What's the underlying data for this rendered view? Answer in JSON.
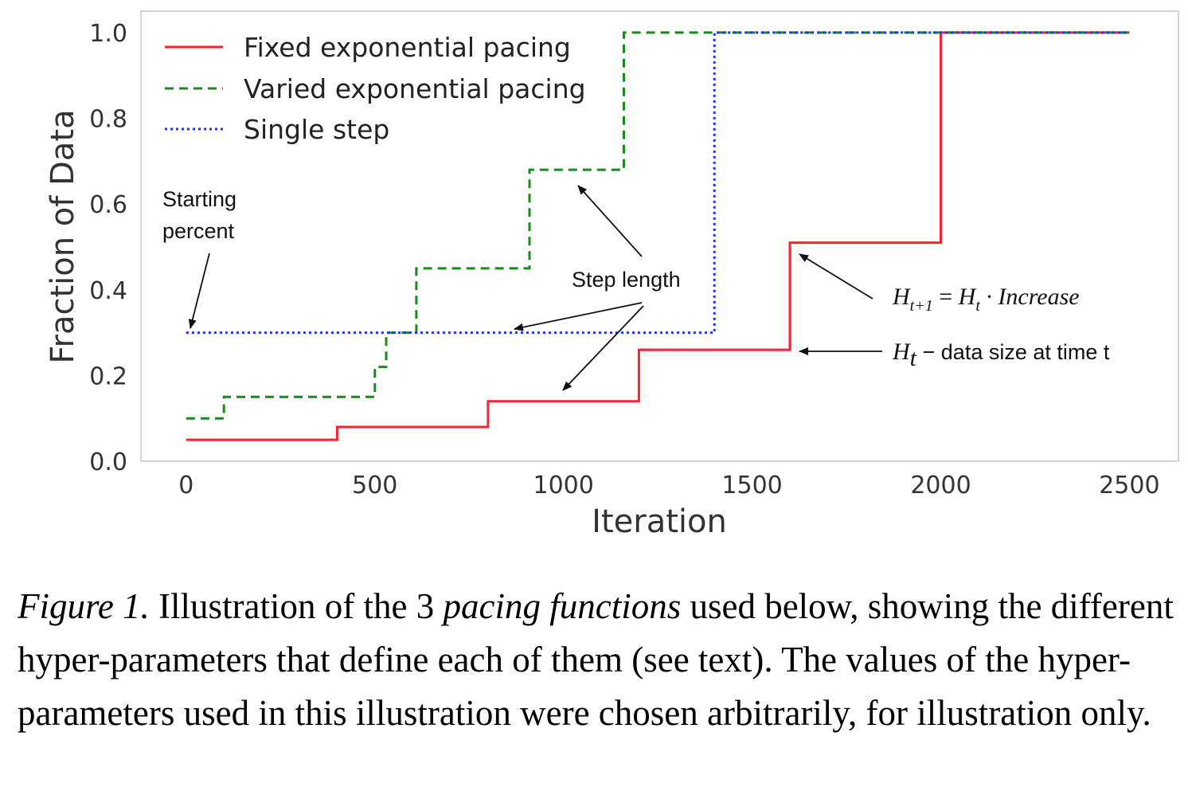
{
  "chart_data": {
    "type": "line",
    "xlabel": "Iteration",
    "ylabel": "Fraction of Data",
    "xlim": [
      -120,
      2630
    ],
    "ylim": [
      0.0,
      1.05
    ],
    "xticks": [
      0,
      500,
      1000,
      1500,
      2000,
      2500
    ],
    "xtick_labels": [
      "0",
      "500",
      "1000",
      "1500",
      "2000",
      "2500"
    ],
    "yticks": [
      0.0,
      0.2,
      0.4,
      0.6,
      0.8,
      1.0
    ],
    "ytick_labels": [
      "0.0",
      "0.2",
      "0.4",
      "0.6",
      "0.8",
      "1.0"
    ],
    "grid": false,
    "legend_position": "top-left",
    "series": [
      {
        "name": "Fixed exponential pacing",
        "color": "#ff1f2e",
        "style": "solid",
        "x": [
          0,
          400,
          400,
          800,
          800,
          1200,
          1200,
          1600,
          1600,
          2000,
          2000,
          2500
        ],
        "y": [
          0.05,
          0.05,
          0.08,
          0.08,
          0.14,
          0.14,
          0.26,
          0.26,
          0.51,
          0.51,
          1.0,
          1.0
        ]
      },
      {
        "name": "Varied exponential pacing",
        "color": "#1a8a1a",
        "style": "dashed",
        "x": [
          0,
          100,
          100,
          500,
          500,
          530,
          530,
          610,
          610,
          910,
          910,
          1160,
          1160,
          2500
        ],
        "y": [
          0.1,
          0.1,
          0.15,
          0.15,
          0.22,
          0.22,
          0.3,
          0.3,
          0.45,
          0.45,
          0.68,
          0.68,
          1.0,
          1.0
        ]
      },
      {
        "name": "Single step",
        "color": "#1f2fff",
        "style": "dotted",
        "x": [
          0,
          1400,
          1400,
          2500
        ],
        "y": [
          0.3,
          0.3,
          1.0,
          1.0
        ]
      }
    ],
    "annotations": {
      "starting_percent": [
        "Starting",
        "percent"
      ],
      "step_length": "Step length",
      "formula": {
        "h_next": "H",
        "h_next_sub": "t+1",
        "equals": " = ",
        "h": "H",
        "h_sub": "t",
        "rest": " · Increase"
      },
      "data_size": {
        "h": "H",
        "h_sub": "t",
        "rest": " − data size at time t"
      }
    }
  },
  "caption": {
    "label": "Figure 1.",
    "text_1": " Illustration of the 3 ",
    "emph": "pacing functions",
    "text_2": " used below, showing the different hyper-parameters that define each of them (see text). The values of the hyper-parameters used in this illustration were chosen arbitrarily, for illustration only."
  }
}
